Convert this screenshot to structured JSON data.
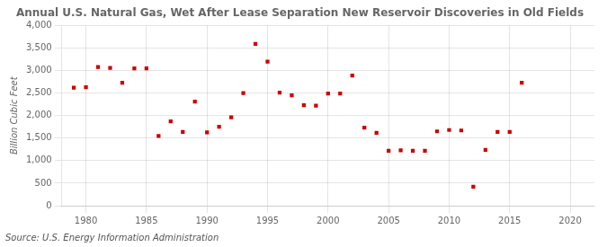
{
  "chart_data": {
    "type": "scatter",
    "title": "Annual U.S. Natural Gas, Wet After Lease Separation New Reservoir Discoveries in Old Fields",
    "ylabel": "Billion Cubic Feet",
    "annotation": "Source: U.S. Energy Information Administration",
    "x": [
      1979,
      1980,
      1981,
      1982,
      1983,
      1984,
      1985,
      1986,
      1987,
      1988,
      1989,
      1990,
      1991,
      1992,
      1993,
      1994,
      1995,
      1996,
      1997,
      1998,
      1999,
      2000,
      2001,
      2002,
      2003,
      2004,
      2005,
      2006,
      2007,
      2008,
      2009,
      2010,
      2011,
      2012,
      2013,
      2014,
      2015,
      2016
    ],
    "values": [
      2620,
      2630,
      3080,
      3060,
      2730,
      3050,
      3050,
      1550,
      1870,
      1640,
      2310,
      1630,
      1750,
      1960,
      2500,
      3590,
      3200,
      2510,
      2450,
      2230,
      2220,
      2490,
      2490,
      2890,
      1730,
      1620,
      1220,
      1230,
      1220,
      1220,
      1650,
      1680,
      1670,
      420,
      1240,
      1640,
      1640,
      2730
    ],
    "color": "#cc0000",
    "marker": "square",
    "xlim": [
      1978,
      2022
    ],
    "xticks": [
      1980,
      1985,
      1990,
      1995,
      2000,
      2005,
      2010,
      2015,
      2020
    ],
    "ylim": [
      0,
      4000
    ],
    "yticks": [
      0,
      500,
      {
        "value": 1000,
        "label": "1,000"
      },
      {
        "value": 1500,
        "label": "1,500"
      },
      {
        "value": 2000,
        "label": "2,000"
      },
      {
        "value": 2500,
        "label": "2,500"
      },
      {
        "value": 3000,
        "label": "3,000"
      },
      {
        "value": 3500,
        "label": "3,500"
      },
      {
        "value": 4000,
        "label": "4,000"
      }
    ],
    "grid": true
  }
}
